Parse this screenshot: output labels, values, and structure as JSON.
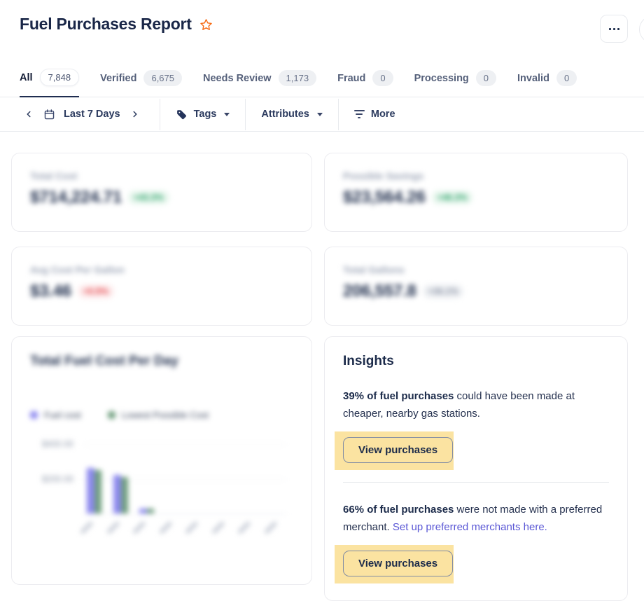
{
  "page": {
    "title": "Fuel Purchases Report"
  },
  "tabs": {
    "items": [
      {
        "label": "All",
        "count": "7,848",
        "active": true
      },
      {
        "label": "Verified",
        "count": "6,675",
        "active": false
      },
      {
        "label": "Needs Review",
        "count": "1,173",
        "active": false
      },
      {
        "label": "Fraud",
        "count": "0",
        "active": false
      },
      {
        "label": "Processing",
        "count": "0",
        "active": false
      },
      {
        "label": "Invalid",
        "count": "0",
        "active": false
      }
    ]
  },
  "filters": {
    "date_range": "Last 7 Days",
    "tags_label": "Tags",
    "attributes_label": "Attributes",
    "more_label": "More"
  },
  "stats": {
    "blurred": true,
    "cards": [
      {
        "label": "Total Cost",
        "value": "$714,224.71",
        "badge": "+43.3%",
        "tone": "positive",
        "badge_bg": "#e7f6ed",
        "badge_color": "#30a46c"
      },
      {
        "label": "Possible Savings",
        "value": "$23,564.26",
        "badge": "+46.3%",
        "tone": "positive",
        "badge_bg": "#e7f6ed",
        "badge_color": "#30a46c"
      },
      {
        "label": "Avg Cost Per Gallon",
        "value": "$3.46",
        "badge": "+0.5%",
        "tone": "negative",
        "badge_bg": "#fdebec",
        "badge_color": "#e5484d"
      },
      {
        "label": "Total Gallons",
        "value": "206,557.8",
        "badge": "+36.1%",
        "tone": "neutral",
        "badge_bg": "#eef0f3",
        "badge_color": "#8b93a5"
      }
    ]
  },
  "chart_data": {
    "type": "bar",
    "title": "Total Fuel Cost Per Day",
    "blurred": true,
    "legend_position": "top-left",
    "y_ticks": [
      {
        "label": "$400.00",
        "value": 400
      },
      {
        "label": "$200.00",
        "value": 200
      }
    ],
    "ylim": [
      0,
      500
    ],
    "categories": [
      "",
      "",
      "",
      "",
      "",
      "",
      "",
      ""
    ],
    "x_tick_labels_illegible": true,
    "series": [
      {
        "name": "Fuel cost",
        "color": "#8c88ef",
        "values": [
          260,
          220,
          30,
          0,
          0,
          0,
          0,
          0
        ]
      },
      {
        "name": "Lowest Possible Cost",
        "color": "#6f9e7e",
        "values": [
          250,
          210,
          28,
          0,
          0,
          0,
          0,
          0
        ]
      }
    ]
  },
  "insights": {
    "title": "Insights",
    "highlight_color": "#fbe3a1",
    "link_color": "#5a57d5",
    "items": [
      {
        "lead": "39% of fuel purchases",
        "rest": " could have been made at cheaper, nearby gas stations.",
        "link": "",
        "button": "View purchases",
        "highlighted": true
      },
      {
        "lead": "66% of fuel purchases",
        "rest": " were not made with a preferred merchant. ",
        "link": "Set up preferred merchants here.",
        "button": "View purchases",
        "highlighted": true
      }
    ]
  }
}
